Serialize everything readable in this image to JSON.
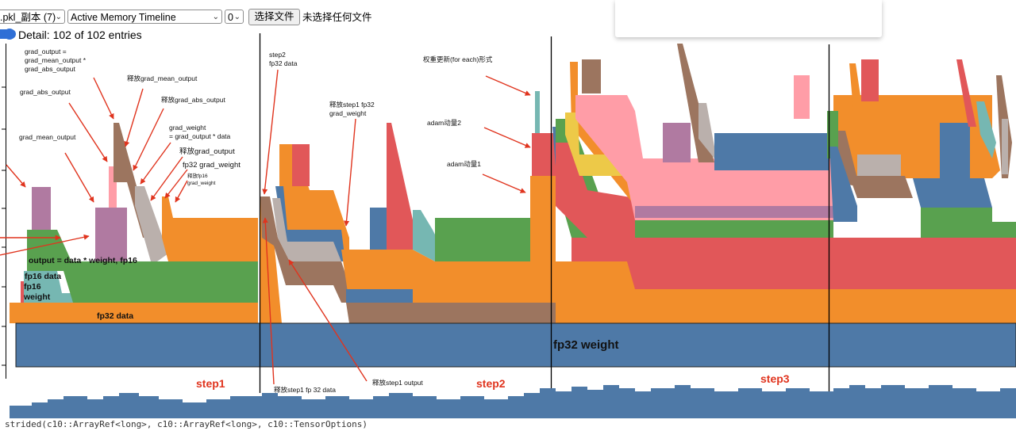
{
  "toolbar": {
    "file_select": ".pkl_副本 (7)",
    "view_select": "Active Memory Timeline",
    "rank_select": "0",
    "choose_file_button": "选择文件",
    "no_file_text": "未选择任何文件"
  },
  "detail": {
    "label": "Detail: 102 of 102 entries"
  },
  "chart_data": {
    "type": "area",
    "title": "Active Memory Timeline",
    "base_block_label": "fp32 weight",
    "step_labels": [
      "step1",
      "step2",
      "step3"
    ],
    "region_labels": [
      "output = data * weight, fp16",
      "fp16 data",
      "fp16\nweight",
      "fp32 data"
    ],
    "annotations": {
      "grad_output_formula": [
        "grad_output =",
        "grad_mean_output *",
        "grad_abs_output"
      ],
      "grad_abs_output": "grad_abs_output",
      "grad_mean_output": "grad_mean_output",
      "release_grad_mean_output": "释放grad_mean_output",
      "release_grad_abs_output": "释放grad_abs_output",
      "grad_weight_formula": [
        "grad_weight",
        "= grad_output * data"
      ],
      "release_grad_output": "释放grad_output",
      "fp32_grad_weight": "fp32 grad_weight",
      "release_fp16_grad_weight": [
        "释放fp16",
        "grad_weight"
      ],
      "step2_fp32_data": [
        "step2",
        "fp32 data"
      ],
      "release_step1_fp32_grad_weight": [
        "释放step1 fp32",
        "grad_weight"
      ],
      "weight_update_foreach": "权重更新(for each)形式",
      "adam_momentum2": "adam动量2",
      "adam_momentum1": "adam动量1",
      "release_step1_fp32_data": "释放step1 fp 32 data",
      "release_step1_output": "释放step1 output"
    },
    "colors": {
      "blue": "#4e79a7",
      "orange": "#f28e2b",
      "red": "#e15759",
      "teal": "#76b7b2",
      "green": "#59a14f",
      "yellow": "#edc948",
      "purple": "#b07aa1",
      "pink": "#ff9da7",
      "brown": "#9c755f",
      "gray": "#bab0ac",
      "annotation_red": "#e0341e"
    }
  },
  "status_code": "strided(c10::ArrayRef<long>, c10::ArrayRef<long>, c10::TensorOptions)"
}
